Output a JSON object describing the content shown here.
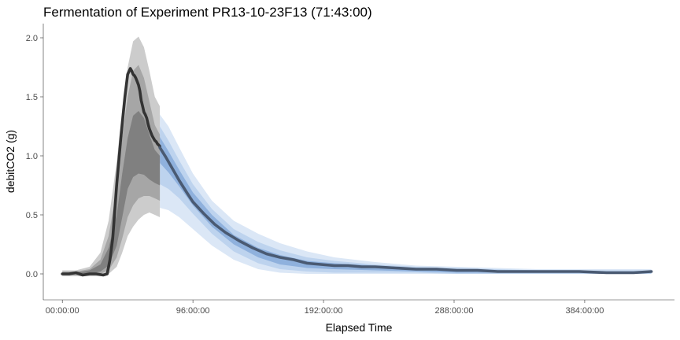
{
  "chart_data": {
    "type": "area",
    "title": "Fermentation of Experiment PR13-10-23F13 (71:43:00)",
    "xlabel": "Elapsed Time",
    "ylabel": "debitCO2 (g)",
    "x_unit": "hours",
    "xlim": [
      -14,
      450
    ],
    "ylim": [
      -0.22,
      2.12
    ],
    "x_ticks": [
      {
        "value": 0,
        "label": "00:00:00"
      },
      {
        "value": 96,
        "label": "96:00:00"
      },
      {
        "value": 192,
        "label": "192:00:00"
      },
      {
        "value": 288,
        "label": "288:00:00"
      },
      {
        "value": 384,
        "label": "384:00:00"
      }
    ],
    "y_ticks": [
      {
        "value": 0,
        "label": "0.0"
      },
      {
        "value": 0.5,
        "label": "0.5"
      },
      {
        "value": 1,
        "label": "1.0"
      },
      {
        "value": 1.5,
        "label": "1.5"
      },
      {
        "value": 2,
        "label": "2.0"
      }
    ],
    "grid": false,
    "legend": "none",
    "colors": {
      "observed_band_outer": "#cccccc",
      "observed_band_mid": "#a6a6a6",
      "observed_band_inner": "#808080",
      "predicted_band_outer": "#dbe7f6",
      "predicted_band_mid": "#bdd3ee",
      "predicted_band_inner": "#8fb1dd",
      "observed_line": "#333333",
      "predicted_line": "#4a5a72"
    },
    "observed_bands": [
      {
        "level": "outer",
        "x": [
          0,
          10,
          20,
          28,
          34,
          40,
          44,
          48,
          52,
          56,
          60,
          64,
          68,
          71.7
        ],
        "lower": [
          -0.02,
          -0.02,
          -0.02,
          -0.02,
          0.0,
          0.06,
          0.18,
          0.32,
          0.4,
          0.46,
          0.5,
          0.52,
          0.5,
          0.48
        ],
        "upper": [
          0.03,
          0.03,
          0.06,
          0.18,
          0.45,
          0.95,
          1.4,
          1.75,
          1.97,
          2.01,
          1.92,
          1.72,
          1.5,
          1.42
        ]
      },
      {
        "level": "mid",
        "x": [
          0,
          10,
          20,
          28,
          34,
          40,
          44,
          48,
          52,
          56,
          60,
          64,
          68,
          71.7
        ],
        "lower": [
          -0.01,
          -0.01,
          -0.01,
          0.0,
          0.03,
          0.14,
          0.3,
          0.48,
          0.58,
          0.64,
          0.66,
          0.66,
          0.64,
          0.62
        ],
        "upper": [
          0.02,
          0.02,
          0.04,
          0.12,
          0.32,
          0.72,
          1.15,
          1.5,
          1.72,
          1.77,
          1.66,
          1.46,
          1.26,
          1.18
        ]
      },
      {
        "level": "inner",
        "x": [
          0,
          10,
          20,
          28,
          34,
          40,
          44,
          48,
          52,
          56,
          60,
          64,
          68,
          71.7
        ],
        "lower": [
          0.0,
          0.0,
          0.0,
          0.02,
          0.07,
          0.24,
          0.48,
          0.72,
          0.82,
          0.85,
          0.84,
          0.8,
          0.77,
          0.75
        ],
        "upper": [
          0.01,
          0.01,
          0.03,
          0.08,
          0.22,
          0.5,
          0.85,
          1.15,
          1.34,
          1.38,
          1.32,
          1.18,
          1.05,
          1.0
        ]
      }
    ],
    "predicted_bands": [
      {
        "level": "outer",
        "x": [
          71.7,
          78,
          86,
          96,
          110,
          126,
          144,
          160,
          180,
          200,
          230,
          260,
          290,
          320,
          350,
          380,
          410,
          433
        ],
        "lower": [
          0.56,
          0.54,
          0.48,
          0.38,
          0.24,
          0.12,
          0.04,
          0.01,
          0.0,
          0.0,
          0.0,
          0.0,
          0.0,
          0.0,
          0.0,
          0.0,
          0.0,
          0.0
        ],
        "upper": [
          1.35,
          1.25,
          1.07,
          0.85,
          0.62,
          0.45,
          0.34,
          0.26,
          0.19,
          0.14,
          0.1,
          0.07,
          0.06,
          0.05,
          0.04,
          0.04,
          0.04,
          0.04
        ]
      },
      {
        "level": "mid",
        "x": [
          71.7,
          78,
          86,
          96,
          110,
          126,
          144,
          160,
          180,
          200,
          230,
          260,
          290,
          320,
          350,
          380,
          410,
          433
        ],
        "lower": [
          0.76,
          0.72,
          0.64,
          0.51,
          0.34,
          0.19,
          0.09,
          0.04,
          0.02,
          0.01,
          0.01,
          0.01,
          0.0,
          0.0,
          0.0,
          0.0,
          0.0,
          0.0
        ],
        "upper": [
          1.25,
          1.13,
          0.96,
          0.76,
          0.55,
          0.38,
          0.27,
          0.2,
          0.14,
          0.11,
          0.08,
          0.06,
          0.05,
          0.04,
          0.03,
          0.03,
          0.03,
          0.03
        ]
      },
      {
        "level": "inner",
        "x": [
          71.7,
          78,
          86,
          96,
          110,
          126,
          144,
          160,
          180,
          200,
          230,
          260,
          290,
          320,
          350,
          380,
          410,
          433
        ],
        "lower": [
          0.94,
          0.86,
          0.74,
          0.58,
          0.4,
          0.25,
          0.14,
          0.08,
          0.05,
          0.04,
          0.03,
          0.02,
          0.01,
          0.01,
          0.01,
          0.01,
          0.01,
          0.01
        ],
        "upper": [
          1.16,
          1.04,
          0.88,
          0.69,
          0.5,
          0.33,
          0.22,
          0.16,
          0.11,
          0.09,
          0.07,
          0.05,
          0.04,
          0.03,
          0.03,
          0.02,
          0.02,
          0.02
        ]
      }
    ],
    "series": [
      {
        "role": "observed",
        "x": [
          0,
          5,
          10,
          15,
          20,
          25,
          30,
          33,
          35,
          37,
          40,
          43,
          46,
          48,
          50,
          51,
          52,
          53,
          54,
          55,
          56,
          57,
          58,
          59,
          60,
          61,
          62,
          63,
          64,
          65,
          66,
          67,
          68,
          69,
          70,
          71,
          71.7
        ],
        "y": [
          0.0,
          0.0,
          0.01,
          -0.01,
          0.0,
          0.0,
          -0.01,
          0.0,
          0.12,
          0.3,
          0.76,
          1.15,
          1.5,
          1.69,
          1.74,
          1.72,
          1.69,
          1.68,
          1.66,
          1.63,
          1.6,
          1.55,
          1.47,
          1.42,
          1.37,
          1.35,
          1.32,
          1.27,
          1.23,
          1.2,
          1.17,
          1.15,
          1.13,
          1.12,
          1.1,
          1.09,
          1.08
        ]
      },
      {
        "role": "predicted",
        "x": [
          71.7,
          76,
          80,
          86,
          92,
          96,
          104,
          112,
          120,
          130,
          140,
          150,
          160,
          170,
          180,
          190,
          200,
          210,
          220,
          230,
          245,
          260,
          275,
          290,
          305,
          320,
          340,
          360,
          380,
          400,
          420,
          433
        ],
        "y": [
          1.07,
          0.99,
          0.91,
          0.79,
          0.68,
          0.61,
          0.51,
          0.42,
          0.35,
          0.28,
          0.22,
          0.17,
          0.14,
          0.12,
          0.09,
          0.08,
          0.07,
          0.07,
          0.06,
          0.06,
          0.05,
          0.04,
          0.04,
          0.03,
          0.03,
          0.02,
          0.02,
          0.02,
          0.02,
          0.01,
          0.01,
          0.02
        ]
      }
    ]
  }
}
